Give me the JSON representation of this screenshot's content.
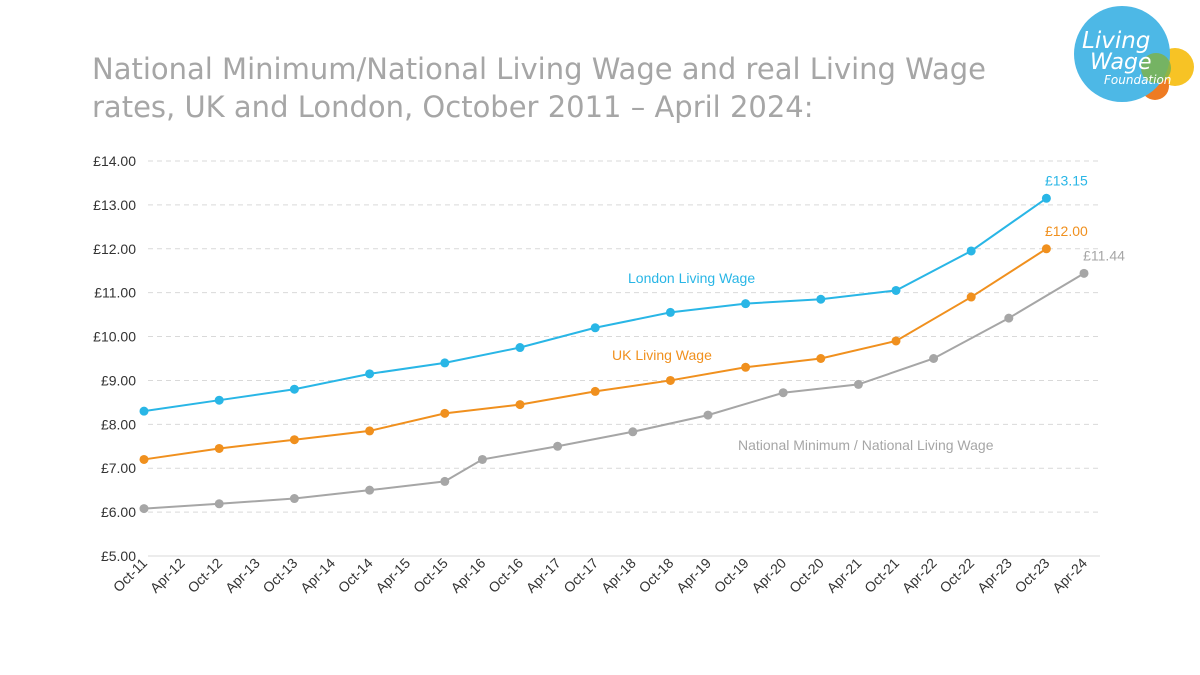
{
  "title": "National Minimum/National Living Wage and real Living Wage rates, UK and London, October 2011 – April 2024:",
  "logo": {
    "line1": "Living",
    "line2": "Wage",
    "line3": "Foundation"
  },
  "colors": {
    "london": "#29B6E6",
    "uk": "#F0901E",
    "national": "#A6A6A6",
    "grid": "#d9d9d9"
  },
  "chart_data": {
    "type": "line",
    "title": "National Minimum/National Living Wage and real Living Wage rates, UK and London, October 2011 – April 2024:",
    "xlabel": "",
    "ylabel": "",
    "ylim": [
      5,
      14
    ],
    "yticks": [
      "£5.00",
      "£6.00",
      "£7.00",
      "£8.00",
      "£9.00",
      "£10.00",
      "£11.00",
      "£12.00",
      "£13.00",
      "£14.00"
    ],
    "grid": true,
    "categories": [
      "Oct-11",
      "Apr-12",
      "Oct-12",
      "Apr-13",
      "Oct-13",
      "Apr-14",
      "Oct-14",
      "Apr-15",
      "Oct-15",
      "Apr-16",
      "Oct-16",
      "Apr-17",
      "Oct-17",
      "Apr-18",
      "Oct-18",
      "Apr-19",
      "Oct-19",
      "Apr-20",
      "Oct-20",
      "Apr-21",
      "Oct-21",
      "Apr-22",
      "Oct-22",
      "Apr-23",
      "Oct-23",
      "Apr-24"
    ],
    "series": [
      {
        "name": "London Living Wage",
        "color": "#29B6E6",
        "points": [
          [
            0,
            8.3
          ],
          [
            2,
            8.55
          ],
          [
            4,
            8.8
          ],
          [
            6,
            9.15
          ],
          [
            8,
            9.4
          ],
          [
            10,
            9.75
          ],
          [
            12,
            10.2
          ],
          [
            14,
            10.55
          ],
          [
            16,
            10.75
          ],
          [
            18,
            10.85
          ],
          [
            20,
            11.05
          ],
          [
            22,
            11.95
          ],
          [
            24,
            13.15
          ]
        ],
        "end_label": "£13.15"
      },
      {
        "name": "UK Living Wage",
        "color": "#F0901E",
        "points": [
          [
            0,
            7.2
          ],
          [
            2,
            7.45
          ],
          [
            4,
            7.65
          ],
          [
            6,
            7.85
          ],
          [
            8,
            8.25
          ],
          [
            10,
            8.45
          ],
          [
            12,
            8.75
          ],
          [
            14,
            9.0
          ],
          [
            16,
            9.3
          ],
          [
            18,
            9.5
          ],
          [
            20,
            9.9
          ],
          [
            22,
            10.9
          ],
          [
            24,
            12.0
          ]
        ],
        "end_label": "£12.00"
      },
      {
        "name": "National Minimum / National Living Wage",
        "color": "#A6A6A6",
        "points": [
          [
            0,
            6.08
          ],
          [
            2,
            6.19
          ],
          [
            4,
            6.31
          ],
          [
            6,
            6.5
          ],
          [
            8,
            6.7
          ],
          [
            9,
            7.2
          ],
          [
            11,
            7.5
          ],
          [
            13,
            7.83
          ],
          [
            15,
            8.21
          ],
          [
            17,
            8.72
          ],
          [
            19,
            8.91
          ],
          [
            21,
            9.5
          ],
          [
            23,
            10.42
          ],
          [
            25,
            11.44
          ]
        ],
        "end_label": "£11.44"
      }
    ]
  }
}
